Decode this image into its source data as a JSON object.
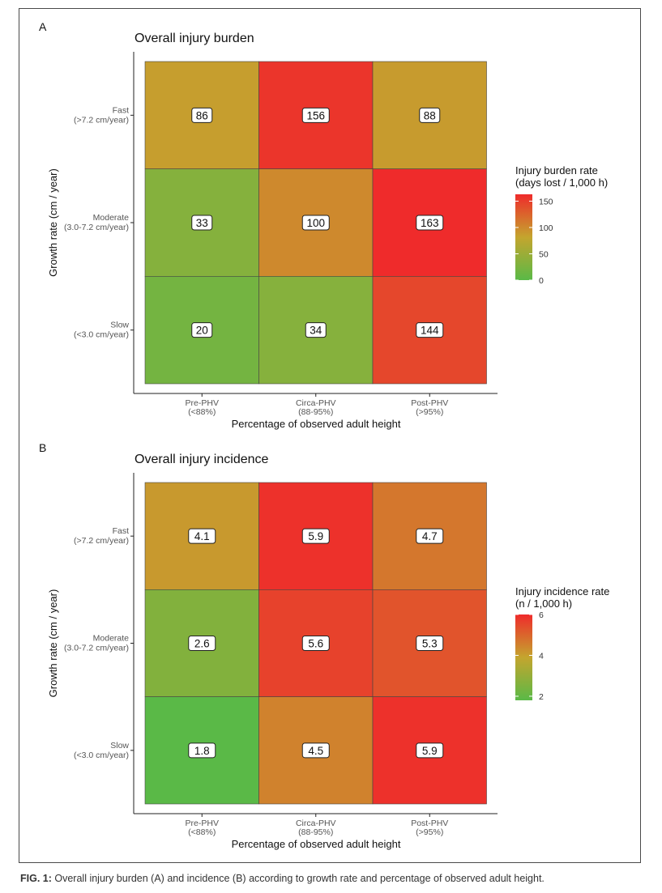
{
  "caption": {
    "label": "FIG. 1:",
    "text": " Overall injury burden (A) and incidence (B) according to growth rate and percentage of observed adult height."
  },
  "chart_data": [
    {
      "type": "heatmap",
      "panel_label": "A",
      "title": "Overall injury burden",
      "xlabel": "Percentage of observed adult height",
      "ylabel": "Growth rate (cm / year)",
      "x_categories": [
        {
          "name": "Pre-PHV",
          "sub": "(<88%)"
        },
        {
          "name": "Circa-PHV",
          "sub": "(88-95%)"
        },
        {
          "name": "Post-PHV",
          "sub": "(>95%)"
        }
      ],
      "y_categories": [
        {
          "name": "Fast",
          "sub": "(>7.2 cm/year)"
        },
        {
          "name": "Moderate",
          "sub": "(3.0-7.2 cm/year)"
        },
        {
          "name": "Slow",
          "sub": "(<3.0 cm/year)"
        }
      ],
      "values": [
        [
          86,
          156,
          88
        ],
        [
          33,
          100,
          163
        ],
        [
          20,
          34,
          144
        ]
      ],
      "labels": [
        [
          "86",
          "156",
          "88"
        ],
        [
          "33",
          "100",
          "163"
        ],
        [
          "20",
          "34",
          "144"
        ]
      ],
      "legend": {
        "title_lines": [
          "Injury burden rate",
          "(days lost / 1,000 h)"
        ],
        "range": [
          0,
          163
        ],
        "ticks": [
          {
            "value": 0,
            "label": "0"
          },
          {
            "value": 50,
            "label": "50"
          },
          {
            "value": 100,
            "label": "100"
          },
          {
            "value": 150,
            "label": "150"
          }
        ]
      },
      "colors": {
        "low": "#5ab947",
        "mid": "#c4a52e",
        "high": "#ef2b2b"
      }
    },
    {
      "type": "heatmap",
      "panel_label": "B",
      "title": "Overall injury incidence",
      "xlabel": "Percentage of observed adult height",
      "ylabel": "Growth rate (cm / year)",
      "x_categories": [
        {
          "name": "Pre-PHV",
          "sub": "(<88%)"
        },
        {
          "name": "Circa-PHV",
          "sub": "(88-95%)"
        },
        {
          "name": "Post-PHV",
          "sub": "(>95%)"
        }
      ],
      "y_categories": [
        {
          "name": "Fast",
          "sub": "(>7.2 cm/year)"
        },
        {
          "name": "Moderate",
          "sub": "(3.0-7.2 cm/year)"
        },
        {
          "name": "Slow",
          "sub": "(<3.0 cm/year)"
        }
      ],
      "values": [
        [
          4.1,
          5.9,
          4.7
        ],
        [
          2.6,
          5.6,
          5.3
        ],
        [
          1.8,
          4.5,
          5.9
        ]
      ],
      "labels": [
        [
          "4.1",
          "5.9",
          "4.7"
        ],
        [
          "2.6",
          "5.6",
          "5.3"
        ],
        [
          "1.8",
          "4.5",
          "5.9"
        ]
      ],
      "legend": {
        "title_lines": [
          "Injury incidence rate",
          "(n / 1,000 h)"
        ],
        "range": [
          1.8,
          6.0
        ],
        "ticks": [
          {
            "value": 2,
            "label": "2"
          },
          {
            "value": 4,
            "label": "4"
          },
          {
            "value": 6,
            "label": "6"
          }
        ]
      },
      "colors": {
        "low": "#5ab947",
        "mid": "#c4a52e",
        "high": "#ef2b2b"
      }
    }
  ]
}
